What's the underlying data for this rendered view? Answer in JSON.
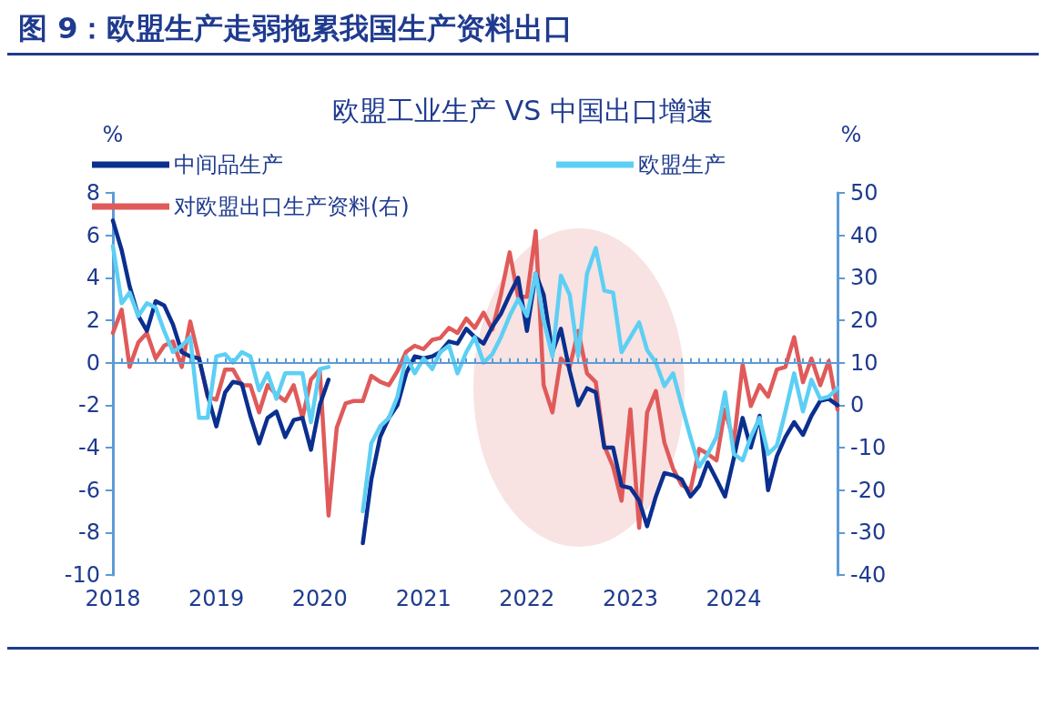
{
  "chart_data": {
    "type": "line",
    "title": "图 9：欧盟生产走弱拖累我国生产资料出口",
    "subtitle": "欧盟工业生产 VS 中国出口增速",
    "ylabel": "%",
    "y2label": "%",
    "x": [
      "2018-01",
      "2018-02",
      "2018-03",
      "2018-04",
      "2018-05",
      "2018-06",
      "2018-07",
      "2018-08",
      "2018-09",
      "2018-10",
      "2018-11",
      "2018-12",
      "2019-01",
      "2019-02",
      "2019-03",
      "2019-04",
      "2019-05",
      "2019-06",
      "2019-07",
      "2019-08",
      "2019-09",
      "2019-10",
      "2019-11",
      "2019-12",
      "2020-01",
      "2020-02",
      "2020-03",
      "2020-04",
      "2020-05",
      "2020-06",
      "2020-07",
      "2020-08",
      "2020-09",
      "2020-10",
      "2020-11",
      "2020-12",
      "2021-01",
      "2021-02",
      "2021-03",
      "2021-04",
      "2021-05",
      "2021-06",
      "2021-07",
      "2021-08",
      "2021-09",
      "2021-10",
      "2021-11",
      "2021-12",
      "2022-01",
      "2022-02",
      "2022-03",
      "2022-04",
      "2022-05",
      "2022-06",
      "2022-07",
      "2022-08",
      "2022-09",
      "2022-10",
      "2022-11",
      "2022-12",
      "2023-01",
      "2023-02",
      "2023-03",
      "2023-04",
      "2023-05",
      "2023-06",
      "2023-07",
      "2023-08",
      "2023-09",
      "2023-10",
      "2023-11",
      "2023-12",
      "2024-01",
      "2024-02",
      "2024-03",
      "2024-04",
      "2024-05",
      "2024-06",
      "2024-07",
      "2024-08",
      "2024-09",
      "2024-10",
      "2024-11",
      "2024-12",
      "2025-01"
    ],
    "series": [
      {
        "name": "中间品生产",
        "color": "#0b2f8f",
        "values": [
          6.7,
          5.3,
          3.6,
          2.2,
          1.5,
          2.9,
          2.7,
          1.8,
          0.5,
          0.3,
          0.2,
          -1.5,
          -3.0,
          -1.4,
          -0.9,
          -1.0,
          -2.5,
          -3.8,
          -2.6,
          -2.3,
          -3.5,
          -2.7,
          -2.6,
          -4.1,
          -2.0,
          -0.8,
          null,
          null,
          null,
          -8.5,
          -5.5,
          -3.5,
          -2.6,
          -2.0,
          -0.5,
          0.3,
          0.2,
          0.3,
          0.5,
          1.0,
          0.9,
          1.6,
          1.2,
          0.9,
          1.7,
          2.3,
          3.2,
          4.0,
          1.5,
          4.2,
          3.2,
          0.5,
          1.6,
          -0.4,
          -2.0,
          -1.2,
          -1.4,
          -4.0,
          -4.0,
          -5.8,
          -5.9,
          -6.5,
          -7.7,
          -6.3,
          -5.2,
          -5.3,
          -5.5,
          -6.3,
          -5.8,
          -4.7,
          -5.5,
          -6.3,
          -4.5,
          -2.6,
          -4.0,
          -2.5,
          -6.0,
          -4.4,
          -3.5,
          -2.8,
          -3.4,
          -2.5,
          -1.8,
          -1.7,
          -2.0
        ]
      },
      {
        "name": "欧盟生产",
        "color": "#5dcff4",
        "values": [
          5.5,
          2.8,
          3.3,
          2.2,
          2.8,
          2.6,
          1.5,
          0.5,
          0.8,
          1.2,
          -2.6,
          -2.6,
          0.3,
          0.4,
          0.0,
          0.5,
          0.3,
          -1.3,
          -0.5,
          -1.7,
          -0.5,
          -0.5,
          -0.5,
          -2.8,
          -0.3,
          -0.2,
          null,
          null,
          null,
          -7.0,
          -3.8,
          -3.0,
          -2.6,
          -1.6,
          0.3,
          -0.5,
          0.2,
          -0.3,
          0.5,
          0.8,
          -0.5,
          0.5,
          1.2,
          0.0,
          0.4,
          1.2,
          2.2,
          3.0,
          2.2,
          4.2,
          2.0,
          0.3,
          4.1,
          3.2,
          0.3,
          4.2,
          5.4,
          3.4,
          3.3,
          0.5,
          1.2,
          1.9,
          0.6,
          0.0,
          -1.1,
          -0.5,
          -2.0,
          -3.5,
          -4.9,
          -4.3,
          -3.5,
          -1.4,
          -4.3,
          -4.6,
          -3.5,
          -2.6,
          -4.3,
          -3.9,
          -2.3,
          -0.5,
          -2.3,
          -0.8,
          -1.7,
          -1.6,
          -1.2
        ]
      },
      {
        "name": "对欧盟出口生产资料(右)",
        "color": "#e05a5a",
        "axis": "y2",
        "values": [
          17,
          22.5,
          9,
          14.8,
          17,
          11,
          14,
          15,
          9,
          19.7,
          11,
          2,
          1.3,
          8.4,
          8.4,
          4.7,
          4.7,
          -1.7,
          4.7,
          2.5,
          1,
          4.7,
          -3,
          6,
          8.4,
          -26,
          -5.3,
          0.4,
          1,
          1,
          6.9,
          5.5,
          4.7,
          8,
          12.6,
          14,
          13.2,
          15.4,
          15.8,
          18.2,
          17,
          20.4,
          18.2,
          21.8,
          17.8,
          26,
          36,
          25.5,
          25.5,
          41,
          4.7,
          -1.7,
          11,
          9,
          17.5,
          7.5,
          5.4,
          -9.6,
          -14.5,
          -22.5,
          -1,
          -28.9,
          -1.7,
          3.3,
          -8.8,
          -15,
          -18.8,
          -20,
          -10.3,
          -11.5,
          -13,
          -1,
          -8.8,
          9.6,
          -0.2,
          4.7,
          2,
          8.4,
          9,
          16,
          5.4,
          11,
          4.7,
          10.4,
          -1
        ]
      }
    ],
    "xlim": [
      "2018-01",
      "2025-01"
    ],
    "xticks": [
      "2018",
      "2019",
      "2020",
      "2021",
      "2022",
      "2023",
      "2024"
    ],
    "ylim": [
      -10,
      8
    ],
    "yticks": [
      -10,
      -8,
      -6,
      -4,
      -2,
      0,
      2,
      4,
      6,
      8
    ],
    "y2lim": [
      -40,
      50
    ],
    "y2ticks": [
      -40,
      -30,
      -20,
      -10,
      0,
      10,
      20,
      30,
      40,
      50
    ],
    "ref_lines": [
      {
        "axis": "y",
        "value": 0,
        "color": "#5b9bd5"
      }
    ],
    "legend": "top left",
    "grid": false,
    "marker": "none",
    "line_style": "solid"
  }
}
